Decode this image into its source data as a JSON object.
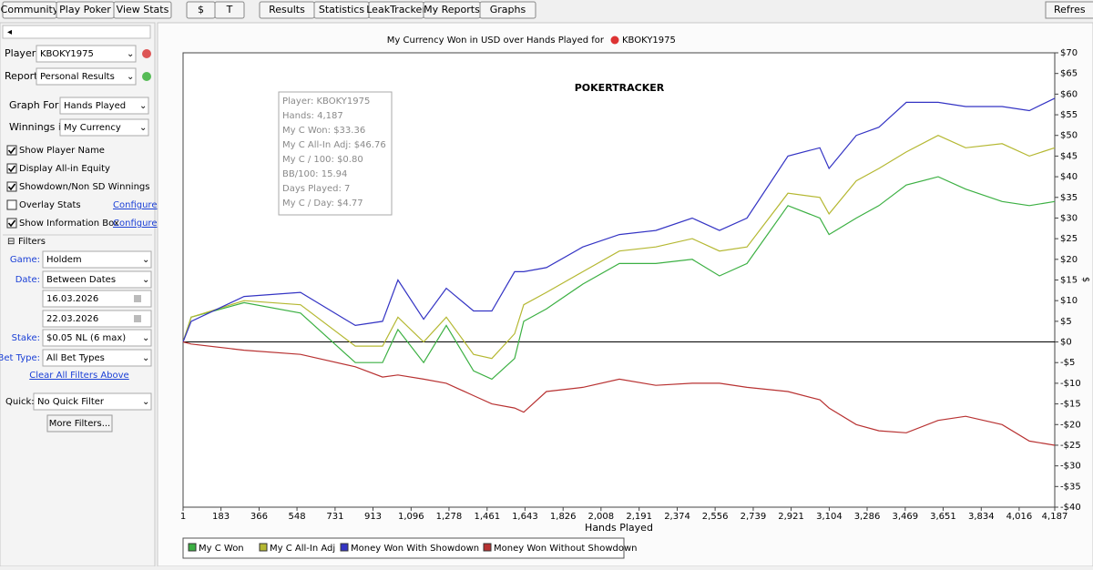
{
  "toolbar": {
    "groups": [
      [
        "Community",
        "Play Poker",
        "View Stats"
      ],
      [
        "$",
        "T"
      ],
      [
        "Results",
        "Statistics",
        "LeakTracker",
        "My Reports",
        "Graphs"
      ]
    ],
    "refresh": "Refres"
  },
  "sidebar": {
    "player_label": "Player:",
    "player": "KBOKY1975",
    "report_label": "Report:",
    "report": "Personal Results",
    "graph_for_label": "Graph For:",
    "graph_for": "Hands Played",
    "winnings_label": "Winnings in:",
    "winnings": "My Currency",
    "options": [
      {
        "label": "Show Player Name",
        "checked": true
      },
      {
        "label": "Display All-in Equity",
        "checked": true
      },
      {
        "label": "Showdown/Non SD Winnings",
        "checked": true
      },
      {
        "label": "Overlay Stats",
        "checked": false,
        "link": "Configure"
      },
      {
        "label": "Show Information Box",
        "checked": true,
        "link": "Configure"
      }
    ],
    "filters_title": "Filters",
    "game_label": "Game:",
    "game": "Holdem",
    "date_label": "Date:",
    "date": "Between Dates",
    "date_from": "16.03.2026",
    "date_to": "22.03.2026",
    "stake_label": "Stake:",
    "stake": "$0.05 NL (6 max)",
    "bet_type_label": "Bet Type:",
    "bet_type": "All Bet Types",
    "clear_filters": "Clear All Filters Above",
    "quick_label": "Quick:",
    "quick": "No Quick Filter",
    "more_filters": "More Filters..."
  },
  "chart_data": {
    "type": "line",
    "title": "My Currency Won in USD over Hands Played for",
    "player": "KBOKY1975",
    "watermark": "POKERTRACKER",
    "x_label": "Hands Played",
    "y_label": "$",
    "annotations": [
      "Player: KBOKY1975",
      "Hands: 4,187",
      "My C Won: $33.36",
      "My C All-In Adj: $46.76",
      "My C / 100: $0.80",
      "BB/100: 15.94",
      "Days Played: 7",
      "My C / Day: $4.77"
    ],
    "x": [
      1,
      40,
      294,
      565,
      828,
      959,
      1033,
      1156,
      1265,
      1396,
      1484,
      1593,
      1637,
      1746,
      1921,
      2096,
      2271,
      2446,
      2577,
      2709,
      2906,
      3059,
      3103,
      3234,
      3343,
      3474,
      3627,
      3759,
      3934,
      4065,
      4187
    ],
    "series": [
      {
        "name": "My C Won",
        "color": "#3cb043",
        "values": [
          0,
          6,
          9.5,
          7,
          -5,
          -5,
          3,
          -5,
          4,
          -7,
          -9,
          -4,
          5,
          8,
          14,
          19,
          19,
          20,
          16,
          19,
          33,
          30,
          26,
          30,
          33,
          38,
          40,
          37,
          34,
          33,
          34
        ]
      },
      {
        "name": "My C All-In Adj",
        "color": "#b5b832",
        "values": [
          0,
          6,
          10,
          9,
          -1,
          -1,
          6,
          0,
          6,
          -3,
          -4,
          2,
          9,
          12,
          17,
          22,
          23,
          25,
          22,
          23,
          36,
          35,
          31,
          39,
          42,
          46,
          50,
          47,
          48,
          45,
          47
        ]
      },
      {
        "name": "Money Won With Showdown",
        "color": "#3434c4",
        "values": [
          0,
          5,
          11,
          12,
          4,
          5,
          15,
          5.5,
          13,
          7.5,
          7.5,
          17,
          17,
          18,
          23,
          26,
          27,
          30,
          27,
          30,
          45,
          47,
          42,
          50,
          52,
          58,
          58,
          57,
          57,
          56,
          59
        ]
      },
      {
        "name": "Money Won Without Showdown",
        "color": "#b83232",
        "values": [
          0,
          -0.5,
          -2,
          -3,
          -6,
          -8.5,
          -8,
          -9,
          -10,
          -13,
          -15,
          -16,
          -17,
          -12,
          -11,
          -9,
          -10.5,
          -10,
          -10,
          -11,
          -12,
          -14,
          -16,
          -20,
          -21.5,
          -22,
          -19,
          -18,
          -20,
          -24,
          -25
        ]
      }
    ],
    "xlim": [
      1,
      4187
    ],
    "xticks": [
      1,
      183,
      366,
      548,
      731,
      913,
      {
        "value": 1096,
        "label": "1,096"
      },
      {
        "value": 1278,
        "label": "1,278"
      },
      {
        "value": 1461,
        "label": "1,461"
      },
      {
        "value": 1643,
        "label": "1,643"
      },
      {
        "value": 1826,
        "label": "1,826"
      },
      {
        "value": 2008,
        "label": "2,008"
      },
      {
        "value": 2191,
        "label": "2,191"
      },
      {
        "value": 2374,
        "label": "2,374"
      },
      {
        "value": 2556,
        "label": "2,556"
      },
      {
        "value": 2739,
        "label": "2,739"
      },
      {
        "value": 2921,
        "label": "2,921"
      },
      {
        "value": 3104,
        "label": "3,104"
      },
      {
        "value": 3286,
        "label": "3,286"
      },
      {
        "value": 3469,
        "label": "3,469"
      },
      {
        "value": 3651,
        "label": "3,651"
      },
      {
        "value": 3834,
        "label": "3,834"
      },
      {
        "value": 4016,
        "label": "4,016"
      },
      {
        "value": 4187,
        "label": "4,187"
      }
    ],
    "ylim": [
      -40,
      70
    ],
    "yticks": [
      {
        "value": 70,
        "label": "$70"
      },
      {
        "value": 65,
        "label": "$65"
      },
      {
        "value": 60,
        "label": "$60"
      },
      {
        "value": 55,
        "label": "$55"
      },
      {
        "value": 50,
        "label": "$50"
      },
      {
        "value": 45,
        "label": "$45"
      },
      {
        "value": 40,
        "label": "$40"
      },
      {
        "value": 35,
        "label": "$35"
      },
      {
        "value": 30,
        "label": "$30"
      },
      {
        "value": 25,
        "label": "$25"
      },
      {
        "value": 20,
        "label": "$20"
      },
      {
        "value": 15,
        "label": "$15"
      },
      {
        "value": 10,
        "label": "$10"
      },
      {
        "value": 5,
        "label": "$5"
      },
      {
        "value": 0,
        "label": "$0"
      },
      {
        "value": -5,
        "label": "-$5"
      },
      {
        "value": -10,
        "label": "-$10"
      },
      {
        "value": -15,
        "label": "-$15"
      },
      {
        "value": -20,
        "label": "-$20"
      },
      {
        "value": -25,
        "label": "-$25"
      },
      {
        "value": -30,
        "label": "-$30"
      },
      {
        "value": -35,
        "label": "-$35"
      },
      {
        "value": -40,
        "label": "-$40"
      }
    ],
    "grid": false
  }
}
